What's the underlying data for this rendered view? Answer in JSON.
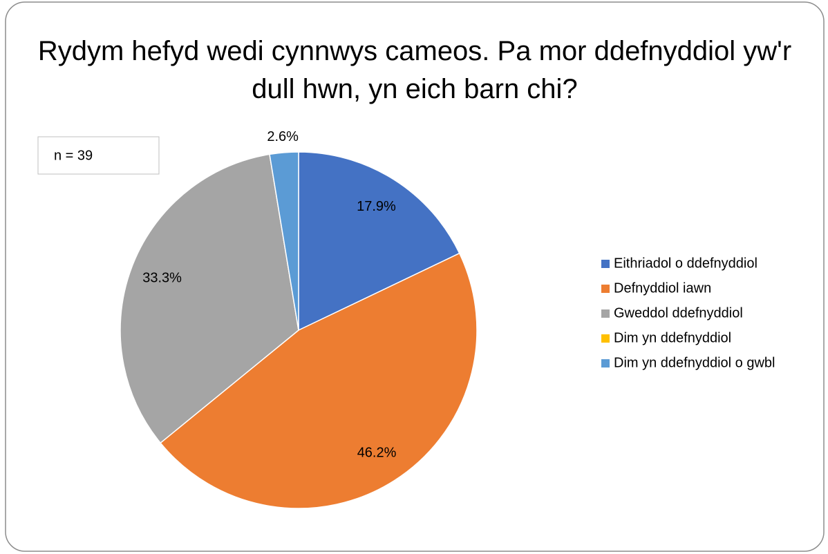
{
  "chart_data": {
    "type": "pie",
    "title": "Rydym hefyd wedi cynnwys cameos. Pa mor ddefnyddiol yw'r dull hwn, yn eich barn chi?",
    "annotation": "n = 39",
    "categories": [
      "Eithriadol o ddefnyddiol",
      "Defnyddiol iawn",
      "Gweddol ddefnyddiol",
      "Dim yn ddefnyddiol",
      "Dim yn ddefnyddiol o gwbl"
    ],
    "values": [
      17.9,
      46.2,
      33.3,
      0,
      2.6
    ],
    "value_labels": [
      "17.9%",
      "46.2%",
      "33.3%",
      null,
      "2.6%"
    ],
    "colors": [
      "#4472c4",
      "#ed7d31",
      "#a5a5a5",
      "#ffc000",
      "#5b9bd5"
    ],
    "legend": "right"
  }
}
